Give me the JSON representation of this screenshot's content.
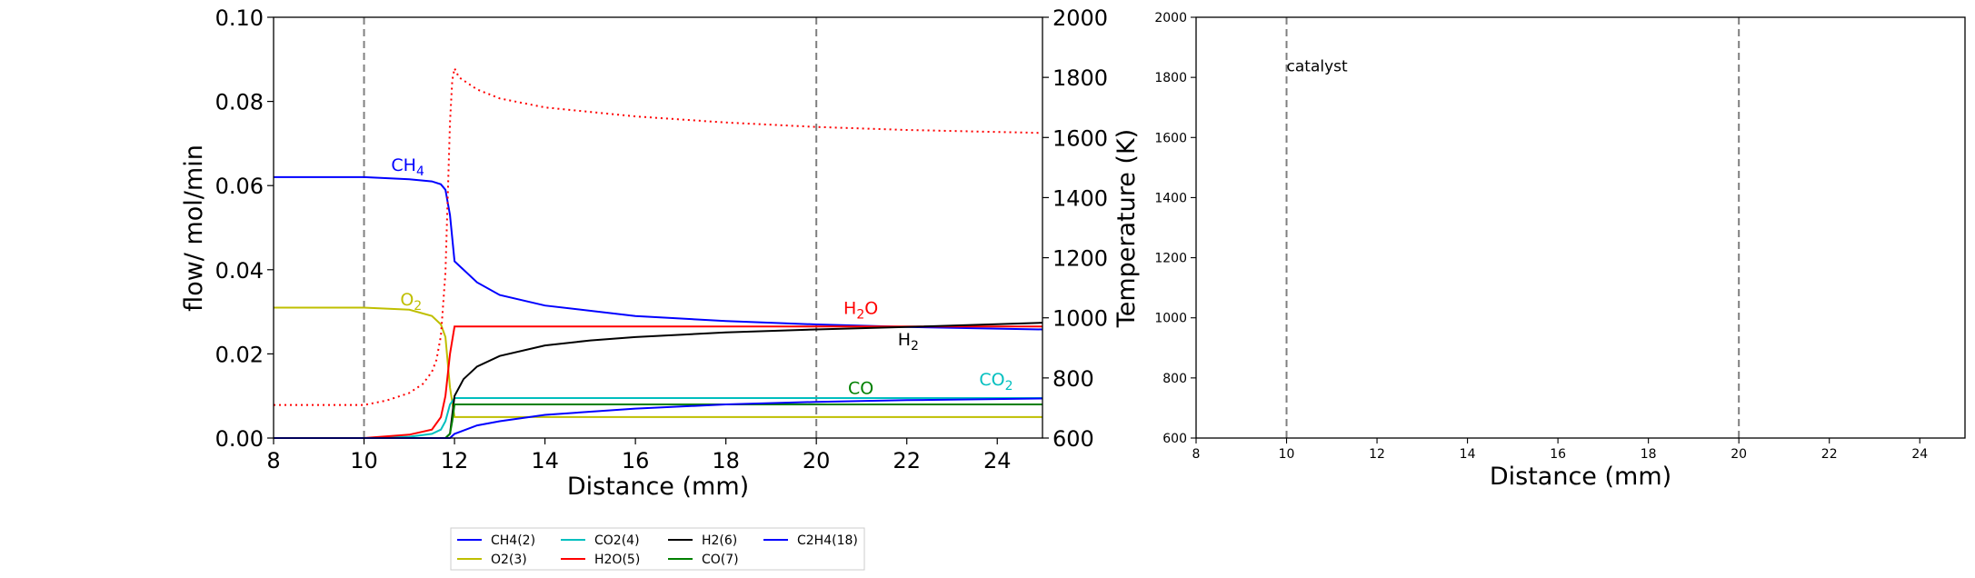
{
  "chart_data": [
    {
      "type": "line",
      "xlabel": "Distance (mm)",
      "ylabel": "flow/ mol/min",
      "y2label": "Temperature (K)",
      "xlim": [
        8,
        25
      ],
      "ylim": [
        0,
        0.1
      ],
      "y2lim": [
        600,
        2000
      ],
      "x_ticks": [
        "8",
        "10",
        "12",
        "14",
        "16",
        "18",
        "20",
        "22",
        "24"
      ],
      "y_ticks": [
        "0.00",
        "0.02",
        "0.04",
        "0.06",
        "0.08",
        "0.10"
      ],
      "y2_ticks": [
        "600",
        "800",
        "1000",
        "1200",
        "1400",
        "1600",
        "1800",
        "2000"
      ],
      "vlines": [
        10,
        20
      ],
      "series": [
        {
          "name": "CH4(2)",
          "color": "#0000ff",
          "x": [
            8,
            10,
            11,
            11.5,
            11.7,
            11.8,
            11.9,
            12,
            12.5,
            13,
            14,
            16,
            18,
            20,
            22,
            25
          ],
          "values": [
            0.062,
            0.062,
            0.0615,
            0.061,
            0.0603,
            0.059,
            0.053,
            0.042,
            0.037,
            0.034,
            0.0315,
            0.029,
            0.0278,
            0.027,
            0.0264,
            0.0258
          ]
        },
        {
          "name": "O2(3)",
          "color": "#bfbf00",
          "x": [
            8,
            10,
            11,
            11.5,
            11.7,
            11.8,
            11.9,
            12,
            13,
            16,
            20,
            25
          ],
          "values": [
            0.031,
            0.031,
            0.0305,
            0.029,
            0.027,
            0.024,
            0.012,
            0.005,
            0.005,
            0.005,
            0.005,
            0.005
          ]
        },
        {
          "name": "CO2(4)",
          "color": "#00bfbf",
          "x": [
            8,
            10,
            11,
            11.5,
            11.7,
            11.8,
            11.9,
            12,
            13,
            16,
            20,
            25
          ],
          "values": [
            0,
            0,
            0.0003,
            0.001,
            0.002,
            0.004,
            0.008,
            0.0095,
            0.0095,
            0.0095,
            0.0095,
            0.0095
          ]
        },
        {
          "name": "H2O(5)",
          "color": "#ff0000",
          "x": [
            8,
            10,
            11,
            11.5,
            11.7,
            11.8,
            11.9,
            12,
            13,
            16,
            20,
            25
          ],
          "values": [
            0,
            0,
            0.0008,
            0.002,
            0.005,
            0.01,
            0.02,
            0.0265,
            0.0265,
            0.0265,
            0.0265,
            0.0265
          ]
        },
        {
          "name": "H2(6)",
          "color": "#000000",
          "x": [
            8,
            11.8,
            11.9,
            12,
            12.2,
            12.5,
            13,
            14,
            15,
            16,
            18,
            20,
            22,
            25
          ],
          "values": [
            0,
            0,
            0.001,
            0.01,
            0.014,
            0.017,
            0.0195,
            0.022,
            0.0232,
            0.024,
            0.0251,
            0.0258,
            0.0264,
            0.0274
          ]
        },
        {
          "name": "CO(7)",
          "color": "#008000",
          "x": [
            8,
            11.8,
            11.9,
            11.95,
            12,
            13,
            16,
            20,
            25
          ],
          "values": [
            0,
            0,
            0.001,
            0.004,
            0.008,
            0.008,
            0.008,
            0.008,
            0.008
          ]
        },
        {
          "name": "C2H4(18)",
          "color": "#0000ff",
          "x": [
            8,
            11.9,
            12,
            12.5,
            13,
            14,
            16,
            18,
            20,
            22,
            25
          ],
          "values": [
            0,
            0,
            0.001,
            0.003,
            0.004,
            0.0055,
            0.007,
            0.008,
            0.0086,
            0.009,
            0.0094
          ]
        }
      ],
      "temperature_series": {
        "color": "#ff0000",
        "style": "dotted",
        "x": [
          8,
          10,
          10.5,
          11,
          11.3,
          11.5,
          11.6,
          11.7,
          11.8,
          11.85,
          11.9,
          11.95,
          12,
          12.1,
          12.5,
          13,
          14,
          16,
          18,
          20,
          22,
          25
        ],
        "values": [
          710,
          710,
          725,
          750,
          780,
          820,
          860,
          940,
          1150,
          1400,
          1650,
          1790,
          1830,
          1800,
          1760,
          1730,
          1700,
          1670,
          1650,
          1635,
          1625,
          1615
        ]
      },
      "annotations": [
        {
          "base": "CH",
          "sub": "4",
          "after": "",
          "x": 10.6,
          "y": 0.0635,
          "color": "#0000ff"
        },
        {
          "base": "O",
          "sub": "2",
          "after": "",
          "x": 10.8,
          "y": 0.0315,
          "color": "#bfbf00"
        },
        {
          "base": "H",
          "sub": "2",
          "after": "O",
          "x": 20.6,
          "y": 0.0295,
          "color": "#ff0000"
        },
        {
          "base": "H",
          "sub": "2",
          "after": "",
          "x": 21.8,
          "y": 0.022,
          "color": "#000000"
        },
        {
          "base": "CO",
          "sub": "",
          "after": "",
          "x": 20.7,
          "y": 0.0105,
          "color": "#008000"
        },
        {
          "base": "CO",
          "sub": "2",
          "after": "",
          "x": 23.6,
          "y": 0.0125,
          "color": "#00bfbf"
        }
      ],
      "legend": {
        "placement": "bottom",
        "entries": [
          {
            "label": "CH4(2)",
            "color": "#0000ff"
          },
          {
            "label": "CO2(4)",
            "color": "#00bfbf"
          },
          {
            "label": "H2(6)",
            "color": "#000000"
          },
          {
            "label": "C2H4(18)",
            "color": "#0000ff"
          },
          {
            "label": "O2(3)",
            "color": "#bfbf00"
          },
          {
            "label": "H2O(5)",
            "color": "#ff0000"
          },
          {
            "label": "CO(7)",
            "color": "#008000"
          }
        ]
      }
    },
    {
      "type": "line",
      "xlabel": "Distance (mm)",
      "xlim": [
        8,
        25
      ],
      "ylim": [
        600,
        2000
      ],
      "x_ticks": [
        "8",
        "10",
        "12",
        "14",
        "16",
        "18",
        "20",
        "22",
        "24"
      ],
      "y_ticks": [
        "600",
        "800",
        "1000",
        "1200",
        "1400",
        "1600",
        "1800",
        "2000"
      ],
      "vlines": [
        10,
        20
      ],
      "annotations": [
        {
          "text": "catalyst",
          "x": 10,
          "y": 1820
        }
      ],
      "series": []
    }
  ]
}
